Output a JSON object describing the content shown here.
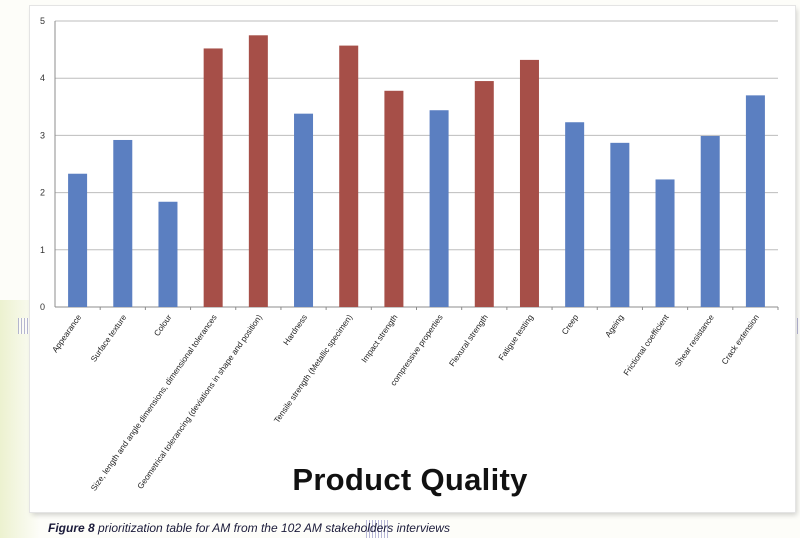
{
  "chart_data": {
    "type": "bar",
    "title": "Product Quality",
    "xlabel": "",
    "ylabel": "",
    "ylim": [
      0,
      5
    ],
    "yticks": [
      0,
      1,
      2,
      3,
      4,
      5
    ],
    "grid": true,
    "legend": "none",
    "categories": [
      "Appearance",
      "Surface texture",
      "Colour",
      "Size, length and angle dimensions, dimensional tolerances",
      "Geometrical tolerancing (deviations in shape and position)",
      "Hardness",
      "Tensile strength (Metallic specimen)",
      "Impact strength",
      "compressive properties",
      "Flexural strength",
      "Fatigue testing",
      "Creep",
      "Ageing",
      "Frictional coefficient",
      "Shear resistance",
      "Crack extension"
    ],
    "values": [
      2.33,
      2.92,
      1.84,
      4.52,
      4.75,
      3.38,
      4.57,
      3.78,
      3.44,
      3.95,
      4.32,
      3.23,
      2.87,
      2.23,
      2.99,
      3.7
    ],
    "bar_colors": [
      "#5b7fc1",
      "#5b7fc1",
      "#5b7fc1",
      "#a64f48",
      "#a64f48",
      "#5b7fc1",
      "#a64f48",
      "#a64f48",
      "#5b7fc1",
      "#a64f48",
      "#a64f48",
      "#5b7fc1",
      "#5b7fc1",
      "#5b7fc1",
      "#5b7fc1",
      "#5b7fc1"
    ]
  },
  "caption": {
    "label": "Figure 8",
    "text": " prioritization table for AM from the 102 AM stakeholders interviews"
  }
}
